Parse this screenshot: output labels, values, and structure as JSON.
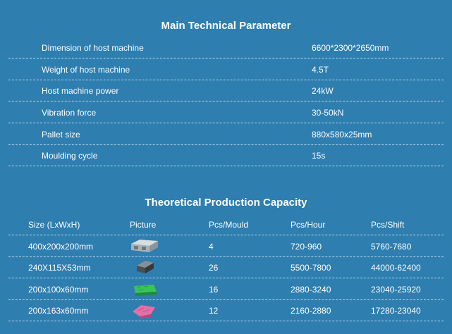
{
  "main_parameter": {
    "title": "Main Technical Parameter",
    "rows": [
      {
        "name": "Dimension of host machine",
        "value": "6600*2300*2650mm"
      },
      {
        "name": "Weight of host machine",
        "value": "4.5T"
      },
      {
        "name": "Host machine power",
        "value": "24kW"
      },
      {
        "name": "Vibration force",
        "value": "30-50kN"
      },
      {
        "name": "Pallet size",
        "value": "880x580x25mm"
      },
      {
        "name": "Moulding cycle",
        "value": "15s"
      }
    ]
  },
  "capacity": {
    "title": "Theoretical Production Capacity",
    "headers": [
      "Size (LxWxH)",
      "Picture",
      "Pcs/Mould",
      "Pcs/Hour",
      "Pcs/Shift"
    ],
    "rows": [
      {
        "size": "400x200x200mm",
        "picture": "hollow-block-icon",
        "pcs_mould": "4",
        "pcs_hour": "720-960",
        "pcs_shift": "5760-7680"
      },
      {
        "size": "240X115X53mm",
        "picture": "solid-brick-icon",
        "pcs_mould": "26",
        "pcs_hour": "5500-7800",
        "pcs_shift": "44000-62400"
      },
      {
        "size": "200x100x60mm",
        "picture": "green-paver-icon",
        "pcs_mould": "16",
        "pcs_hour": "2880-3240",
        "pcs_shift": "23040-25920"
      },
      {
        "size": "200x163x60mm",
        "picture": "pink-paver-icon",
        "pcs_mould": "12",
        "pcs_hour": "2160-2880",
        "pcs_shift": "17280-23040"
      }
    ]
  },
  "colors": {
    "background": "#2e7eb0",
    "text": "#ffffff",
    "divider": "#bfd8ea"
  }
}
